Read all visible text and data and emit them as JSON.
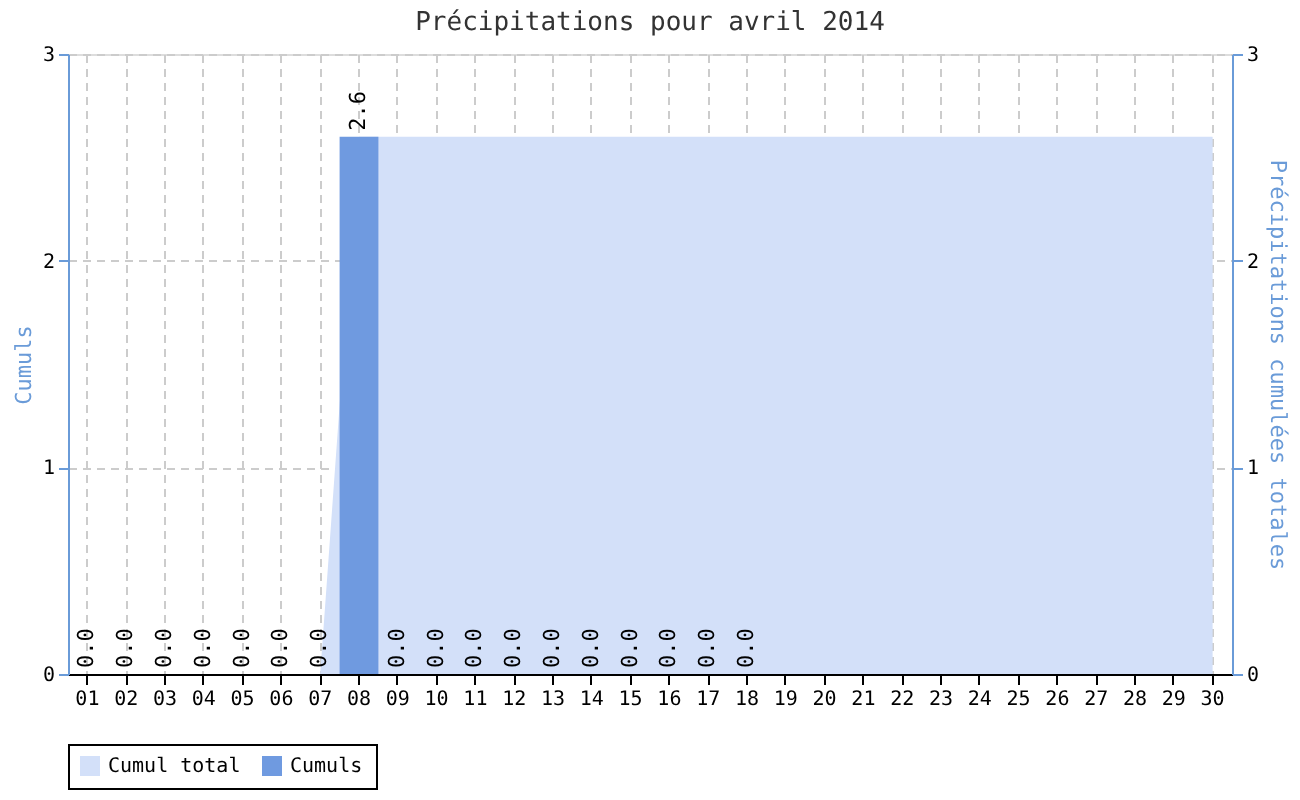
{
  "chart_data": {
    "type": "bar",
    "title": "Précipitations pour avril 2014",
    "ylabel": "Cumuls",
    "y2label": "Précipitations cumulées totales",
    "categories": [
      "01",
      "02",
      "03",
      "04",
      "05",
      "06",
      "07",
      "08",
      "09",
      "10",
      "11",
      "12",
      "13",
      "14",
      "15",
      "16",
      "17",
      "18",
      "19",
      "20",
      "21",
      "22",
      "23",
      "24",
      "25",
      "26",
      "27",
      "28",
      "29",
      "30"
    ],
    "series": [
      {
        "name": "Cumul total",
        "type": "area",
        "axis": "y2",
        "color": "#d3e0f9",
        "values": [
          0,
          0,
          0,
          0,
          0,
          0,
          0,
          2.6,
          2.6,
          2.6,
          2.6,
          2.6,
          2.6,
          2.6,
          2.6,
          2.6,
          2.6,
          2.6,
          2.6,
          2.6,
          2.6,
          2.6,
          2.6,
          2.6,
          2.6,
          2.6,
          2.6,
          2.6,
          2.6,
          2.6
        ]
      },
      {
        "name": "Cumuls",
        "color": "#6f9ae0",
        "values": [
          0,
          0,
          0,
          0,
          0,
          0,
          0,
          2.6,
          0,
          0,
          0,
          0,
          0,
          0,
          0,
          0,
          0,
          0,
          null,
          null,
          null,
          null,
          null,
          null,
          null,
          null,
          null,
          null,
          null,
          null
        ],
        "value_labels": [
          "0.0",
          "0.0",
          "0.0",
          "0.0",
          "0.0",
          "0.0",
          "0.0",
          "2.6",
          "0.0",
          "0.0",
          "0.0",
          "0.0",
          "0.0",
          "0.0",
          "0.0",
          "0.0",
          "0.0",
          "0.0",
          null,
          null,
          null,
          null,
          null,
          null,
          null,
          null,
          null,
          null,
          null,
          null
        ]
      }
    ],
    "ylim": [
      0,
      3
    ],
    "yticks": [
      0,
      1,
      2,
      3
    ],
    "y2lim": [
      0,
      3
    ],
    "y2ticks": [
      0,
      1,
      2,
      3
    ],
    "grid": true,
    "legend": "bottom"
  }
}
